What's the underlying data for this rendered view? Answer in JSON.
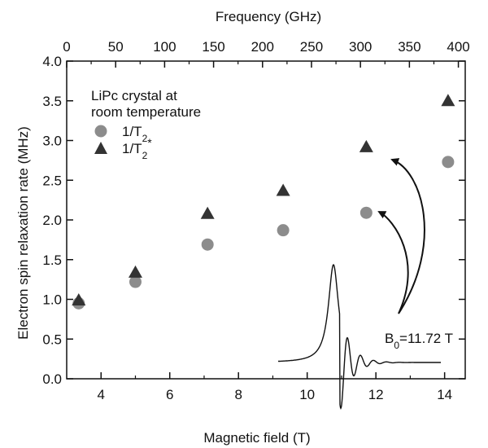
{
  "chart_data": {
    "type": "scatter",
    "xlabel": "Magnetic field (T)",
    "ylabel": "Electron spin relaxation rate (MHz)",
    "top_xlabel": "Frequency (GHz)",
    "xlim": [
      3,
      14.6
    ],
    "ylim": [
      0,
      4.0
    ],
    "top_xlim": [
      0,
      407
    ],
    "x_ticks": [
      4,
      6,
      8,
      10,
      12,
      14
    ],
    "y_ticks": [
      "0.0",
      "0.5",
      "1.0",
      "1.5",
      "2.0",
      "2.5",
      "3.0",
      "3.5",
      "4.0"
    ],
    "top_ticks": [
      0,
      50,
      100,
      150,
      200,
      250,
      300,
      350,
      400
    ],
    "legend": {
      "title_line1": "LiPc crystal at",
      "title_line2": "room temperature",
      "entries": [
        {
          "base": "1/T",
          "sub": "2",
          "sup": "",
          "marker": "circle",
          "color": "#8c8c8c"
        },
        {
          "base": "1/T",
          "sub": "2",
          "sup": "*",
          "marker": "triangle",
          "color": "#333333"
        }
      ]
    },
    "series": [
      {
        "name": "1/T2",
        "marker": "circle",
        "color": "#8c8c8c",
        "x": [
          3.35,
          5.0,
          7.1,
          9.3,
          11.72,
          14.1
        ],
        "y": [
          0.95,
          1.22,
          1.69,
          1.87,
          2.09,
          2.73
        ]
      },
      {
        "name": "1/T2*",
        "marker": "triangle",
        "color": "#333333",
        "x": [
          3.35,
          5.0,
          7.1,
          9.3,
          11.72,
          14.1
        ],
        "y": [
          1.0,
          1.35,
          2.09,
          2.38,
          2.93,
          3.51
        ]
      }
    ],
    "annotation": {
      "base": "B",
      "sub": "0",
      "rest": "=11.72 T"
    },
    "inset": "EPR derivative lineshape with arrows pointing to the 11.72 T points",
    "grid": false
  }
}
